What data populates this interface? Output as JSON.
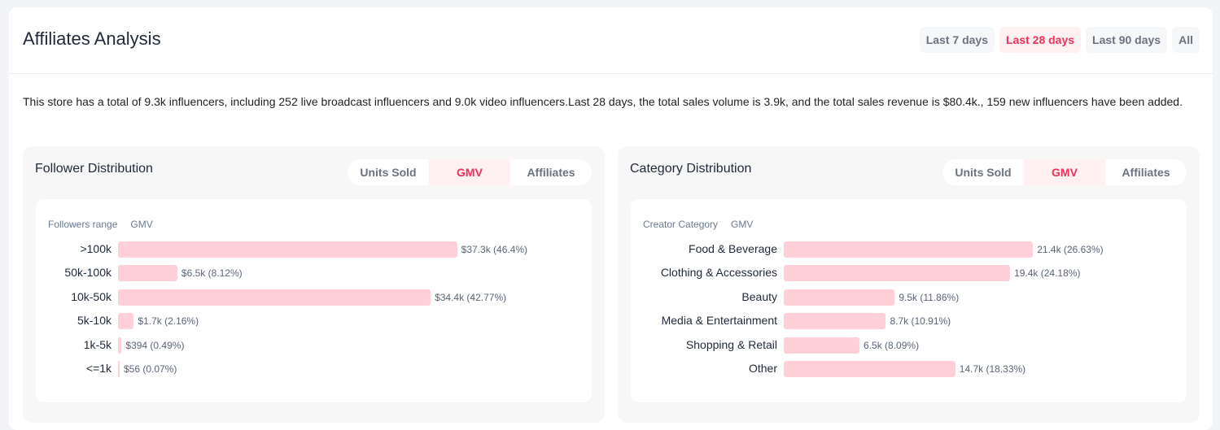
{
  "header": {
    "title": "Affiliates Analysis",
    "ranges": [
      "Last 7 days",
      "Last 28 days",
      "Last 90 days",
      "All"
    ],
    "active_range": 1
  },
  "summary": "This store has a total of 9.3k influencers, including 252 live broadcast influencers and 9.0k video influencers.Last 28 days, the total sales volume is 3.9k, and the total sales revenue is $80.4k., 159 new influencers have been added.",
  "colors": {
    "accent": "#f0325a",
    "bar": "#ffd0d7",
    "active_bg": "#fff0f2"
  },
  "follower_panel": {
    "title": "Follower Distribution",
    "tabs": [
      "Units Sold",
      "GMV",
      "Affiliates"
    ],
    "active_tab": 1,
    "chart_head": {
      "dim": "Followers range",
      "metric": "GMV"
    },
    "chart_data": {
      "type": "bar",
      "orientation": "horizontal",
      "categories": [
        ">100k",
        "50k-100k",
        "10k-50k",
        "5k-10k",
        "1k-5k",
        "<=1k"
      ],
      "values": [
        46.4,
        8.12,
        42.77,
        2.16,
        0.49,
        0.07
      ],
      "value_labels": [
        "$37.3k (46.4%)",
        "$6.5k (8.12%)",
        "$34.4k (42.77%)",
        "$1.7k (2.16%)",
        "$394 (0.49%)",
        "$56 (0.07%)"
      ],
      "xlabel": "GMV",
      "ylabel": "Followers range"
    }
  },
  "category_panel": {
    "title": "Category Distribution",
    "tabs": [
      "Units Sold",
      "GMV",
      "Affiliates"
    ],
    "active_tab": 1,
    "chart_head": {
      "dim": "Creator Category",
      "metric": "GMV"
    },
    "chart_data": {
      "type": "bar",
      "orientation": "horizontal",
      "categories": [
        "Food & Beverage",
        "Clothing & Accessories",
        "Beauty",
        "Media & Entertainment",
        "Shopping & Retail",
        "Other"
      ],
      "values": [
        26.63,
        24.18,
        11.86,
        10.91,
        8.09,
        18.33
      ],
      "value_labels": [
        "21.4k (26.63%)",
        "19.4k (24.18%)",
        "9.5k (11.86%)",
        "8.7k (10.91%)",
        "6.5k (8.09%)",
        "14.7k (18.33%)"
      ],
      "xlabel": "GMV",
      "ylabel": "Creator Category"
    }
  }
}
